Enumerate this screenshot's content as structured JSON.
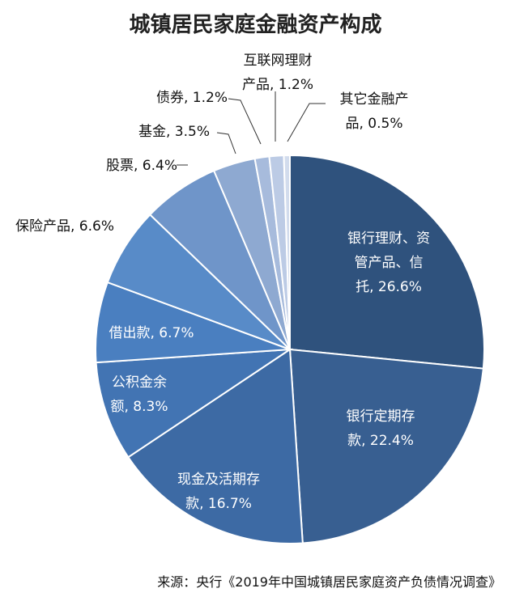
{
  "title": "城镇居民家庭金融资产构成",
  "source": "来源：央行《2019年中国城镇居民家庭资产负债情况调查》",
  "chart_data": {
    "type": "pie",
    "title": "城镇居民家庭金融资产构成",
    "slices": [
      {
        "label": "银行理财、资管产品、信托",
        "value": 26.6,
        "text": "26.6%",
        "color": "#2f527d"
      },
      {
        "label": "银行定期存款",
        "value": 22.4,
        "text": "22.4%",
        "color": "#385f91"
      },
      {
        "label": "现金及活期存款",
        "value": 16.7,
        "text": "16.7%",
        "color": "#3d6aa4"
      },
      {
        "label": "公积金余额",
        "value": 8.3,
        "text": "8.3%",
        "color": "#4274b3"
      },
      {
        "label": "借出款",
        "value": 6.7,
        "text": "6.7%",
        "color": "#4a7fc0"
      },
      {
        "label": "保险产品",
        "value": 6.6,
        "text": "6.6%",
        "color": "#588bc8"
      },
      {
        "label": "股票",
        "value": 6.4,
        "text": "6.4%",
        "color": "#6f95c9"
      },
      {
        "label": "基金",
        "value": 3.5,
        "text": "3.5%",
        "color": "#8ea9d1"
      },
      {
        "label": "债券",
        "value": 1.2,
        "text": "1.2%",
        "color": "#a7bbdc"
      },
      {
        "label": "互联网理财产品",
        "value": 1.2,
        "text": "1.2%",
        "color": "#bccbe5"
      },
      {
        "label": "其它金融产品",
        "value": 0.5,
        "text": "0.5%",
        "color": "#d2dced"
      }
    ]
  }
}
